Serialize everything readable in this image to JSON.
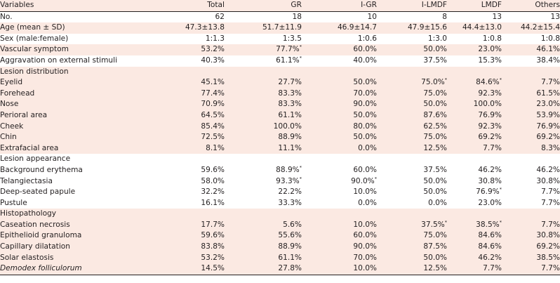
{
  "columns": [
    "Variables",
    "Total",
    "GR",
    "I-GR",
    "I-LMDF",
    "LMDF",
    "Others"
  ],
  "rows": [
    {
      "label": "No.",
      "indent": false,
      "shade": false,
      "cells": [
        [
          "62",
          ""
        ],
        [
          "18",
          ""
        ],
        [
          "10",
          ""
        ],
        [
          "8",
          ""
        ],
        [
          "13",
          ""
        ],
        [
          "13",
          ""
        ]
      ]
    },
    {
      "label": "Age (mean ± SD)",
      "indent": false,
      "shade": true,
      "cells": [
        [
          "47.3±13.8",
          ""
        ],
        [
          "51.7±11.9",
          ""
        ],
        [
          "46.9±14.7",
          ""
        ],
        [
          "47.9±15.6",
          ""
        ],
        [
          "44.4±13.0",
          ""
        ],
        [
          "44.2±15.4",
          ""
        ]
      ]
    },
    {
      "label": "Sex (male:female)",
      "indent": false,
      "shade": false,
      "cells": [
        [
          "1:1.3",
          ""
        ],
        [
          "1:3.5",
          ""
        ],
        [
          "1:0.6",
          ""
        ],
        [
          "1:3.0",
          ""
        ],
        [
          "1:0.8",
          ""
        ],
        [
          "1:0.8",
          ""
        ]
      ]
    },
    {
      "label": "Vascular symptom",
      "indent": false,
      "shade": true,
      "cells": [
        [
          "53.2%",
          ""
        ],
        [
          "77.7%",
          "*"
        ],
        [
          "60.0%",
          ""
        ],
        [
          "50.0%",
          ""
        ],
        [
          "23.0%",
          ""
        ],
        [
          "46.1%",
          ""
        ]
      ]
    },
    {
      "label": "Aggravation on external stimuli",
      "indent": false,
      "shade": false,
      "cells": [
        [
          "40.3%",
          ""
        ],
        [
          "61.1%",
          "*"
        ],
        [
          "40.0%",
          ""
        ],
        [
          "37.5%",
          ""
        ],
        [
          "15.3%",
          ""
        ],
        [
          "38.4%",
          ""
        ]
      ]
    },
    {
      "label": "Lesion distribution",
      "indent": false,
      "shade": true,
      "cells": [
        [
          "",
          ""
        ],
        [
          "",
          ""
        ],
        [
          "",
          ""
        ],
        [
          "",
          ""
        ],
        [
          "",
          ""
        ],
        [
          "",
          ""
        ]
      ]
    },
    {
      "label": "Eyelid",
      "indent": true,
      "shade": true,
      "cells": [
        [
          "45.1%",
          ""
        ],
        [
          "27.7%",
          ""
        ],
        [
          "50.0%",
          ""
        ],
        [
          "75.0%",
          "*"
        ],
        [
          "84.6%",
          "*"
        ],
        [
          "7.7%",
          ""
        ]
      ]
    },
    {
      "label": "Forehead",
      "indent": true,
      "shade": true,
      "cells": [
        [
          "77.4%",
          ""
        ],
        [
          "83.3%",
          ""
        ],
        [
          "70.0%",
          ""
        ],
        [
          "75.0%",
          ""
        ],
        [
          "92.3%",
          ""
        ],
        [
          "61.5%",
          ""
        ]
      ]
    },
    {
      "label": "Nose",
      "indent": true,
      "shade": true,
      "cells": [
        [
          "70.9%",
          ""
        ],
        [
          "83.3%",
          ""
        ],
        [
          "90.0%",
          ""
        ],
        [
          "50.0%",
          ""
        ],
        [
          "100.0%",
          ""
        ],
        [
          "23.0%",
          ""
        ]
      ]
    },
    {
      "label": "Perioral area",
      "indent": true,
      "shade": true,
      "cells": [
        [
          "64.5%",
          ""
        ],
        [
          "61.1%",
          ""
        ],
        [
          "50.0%",
          ""
        ],
        [
          "87.6%",
          ""
        ],
        [
          "76.9%",
          ""
        ],
        [
          "53.9%",
          ""
        ]
      ]
    },
    {
      "label": "Cheek",
      "indent": true,
      "shade": true,
      "cells": [
        [
          "85.4%",
          ""
        ],
        [
          "100.0%",
          ""
        ],
        [
          "80.0%",
          ""
        ],
        [
          "62.5%",
          ""
        ],
        [
          "92.3%",
          ""
        ],
        [
          "76.9%",
          ""
        ]
      ]
    },
    {
      "label": "Chin",
      "indent": true,
      "shade": true,
      "cells": [
        [
          "72.5%",
          ""
        ],
        [
          "88.9%",
          ""
        ],
        [
          "50.0%",
          ""
        ],
        [
          "75.0%",
          ""
        ],
        [
          "69.2%",
          ""
        ],
        [
          "69.2%",
          ""
        ]
      ]
    },
    {
      "label": "Extrafacial area",
      "indent": true,
      "shade": true,
      "cells": [
        [
          "8.1%",
          ""
        ],
        [
          "11.1%",
          ""
        ],
        [
          "0.0%",
          ""
        ],
        [
          "12.5%",
          ""
        ],
        [
          "7.7%",
          ""
        ],
        [
          "8.3%",
          ""
        ]
      ]
    },
    {
      "label": "Lesion appearance",
      "indent": false,
      "shade": false,
      "cells": [
        [
          "",
          ""
        ],
        [
          "",
          ""
        ],
        [
          "",
          ""
        ],
        [
          "",
          ""
        ],
        [
          "",
          ""
        ],
        [
          "",
          ""
        ]
      ]
    },
    {
      "label": "Background erythema",
      "indent": true,
      "shade": false,
      "cells": [
        [
          "59.6%",
          ""
        ],
        [
          "88.9%",
          "*"
        ],
        [
          "60.0%",
          ""
        ],
        [
          "37.5%",
          ""
        ],
        [
          "46.2%",
          ""
        ],
        [
          "46.2%",
          ""
        ]
      ]
    },
    {
      "label": "Telangiectasia",
      "indent": true,
      "shade": false,
      "cells": [
        [
          "58.0%",
          ""
        ],
        [
          "93.3%",
          "*"
        ],
        [
          "90.0%",
          "*"
        ],
        [
          "50.0%",
          ""
        ],
        [
          "30.8%",
          ""
        ],
        [
          "30.8%",
          ""
        ]
      ]
    },
    {
      "label": "Deep-seated papule",
      "indent": true,
      "shade": false,
      "cells": [
        [
          "32.2%",
          ""
        ],
        [
          "22.2%",
          ""
        ],
        [
          "10.0%",
          ""
        ],
        [
          "50.0%",
          ""
        ],
        [
          "76.9%",
          "*"
        ],
        [
          "7.7%",
          ""
        ]
      ]
    },
    {
      "label": "Pustule",
      "indent": true,
      "shade": false,
      "cells": [
        [
          "16.1%",
          ""
        ],
        [
          "33.3%",
          ""
        ],
        [
          "0.0%",
          ""
        ],
        [
          "0.0%",
          ""
        ],
        [
          "23.0%",
          ""
        ],
        [
          "7.7%",
          ""
        ]
      ]
    },
    {
      "label": "Histopathology",
      "indent": false,
      "shade": true,
      "cells": [
        [
          "",
          ""
        ],
        [
          "",
          ""
        ],
        [
          "",
          ""
        ],
        [
          "",
          ""
        ],
        [
          "",
          ""
        ],
        [
          "",
          ""
        ]
      ]
    },
    {
      "label": "Caseation necrosis",
      "indent": true,
      "shade": true,
      "cells": [
        [
          "17.7%",
          ""
        ],
        [
          "5.6%",
          ""
        ],
        [
          "10.0%",
          ""
        ],
        [
          "37.5%",
          "*"
        ],
        [
          "38.5%",
          "*"
        ],
        [
          "7.7%",
          ""
        ]
      ]
    },
    {
      "label": "Epithelioid granuloma",
      "indent": true,
      "shade": true,
      "cells": [
        [
          "59.6%",
          ""
        ],
        [
          "55.6%",
          ""
        ],
        [
          "60.0%",
          ""
        ],
        [
          "75.0%",
          ""
        ],
        [
          "84.6%",
          ""
        ],
        [
          "30.8%",
          ""
        ]
      ]
    },
    {
      "label": "Capillary dilatation",
      "indent": true,
      "shade": true,
      "cells": [
        [
          "83.8%",
          ""
        ],
        [
          "88.9%",
          ""
        ],
        [
          "90.0%",
          ""
        ],
        [
          "87.5%",
          ""
        ],
        [
          "84.6%",
          ""
        ],
        [
          "69.2%",
          ""
        ]
      ]
    },
    {
      "label": "Solar elastosis",
      "indent": true,
      "shade": true,
      "cells": [
        [
          "53.2%",
          ""
        ],
        [
          "61.1%",
          ""
        ],
        [
          "70.0%",
          ""
        ],
        [
          "50.0%",
          ""
        ],
        [
          "46.2%",
          ""
        ],
        [
          "38.5%",
          ""
        ]
      ]
    },
    {
      "label": "Demodex folliculorum",
      "indent": true,
      "shade": true,
      "italic": true,
      "cells": [
        [
          "14.5%",
          ""
        ],
        [
          "27.8%",
          ""
        ],
        [
          "10.0%",
          ""
        ],
        [
          "12.5%",
          ""
        ],
        [
          "7.7%",
          ""
        ],
        [
          "7.7%",
          ""
        ]
      ]
    }
  ]
}
